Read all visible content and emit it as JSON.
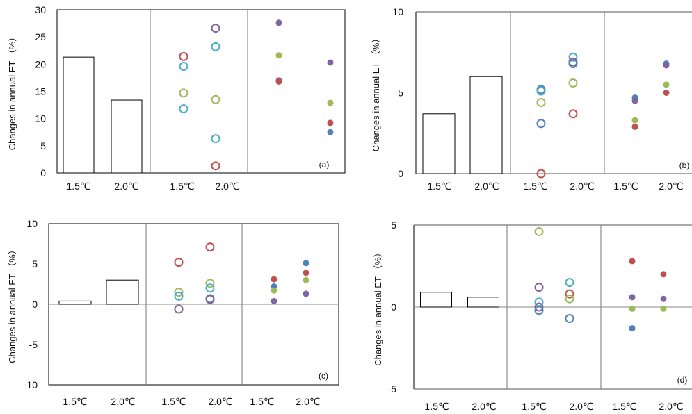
{
  "chart_data": [
    {
      "type": "scatter",
      "panel": "(a)",
      "ylabel": "Changes in annual ET （%）",
      "ylim": [
        0,
        30
      ],
      "yticks": [
        0,
        5,
        10,
        15,
        20,
        25,
        30
      ],
      "x_labels": [
        "1.5℃",
        "2.0℃",
        "1.5℃",
        "2.0℃"
      ],
      "bars": {
        "categories": [
          "1.5℃",
          "2.0℃"
        ],
        "values": [
          21.3,
          13.4
        ]
      },
      "hollow_markers": [
        {
          "x": "1.5℃",
          "color": "#c0504d",
          "value": 21.4
        },
        {
          "x": "1.5℃",
          "color": "#4bacc6",
          "value": 19.6
        },
        {
          "x": "1.5℃",
          "color": "#9bbb59",
          "value": 14.7
        },
        {
          "x": "1.5℃",
          "color": "#4bacc6",
          "value": 11.8
        },
        {
          "x": "2.0℃",
          "color": "#8064a2",
          "value": 26.6
        },
        {
          "x": "2.0℃",
          "color": "#4bacc6",
          "value": 23.2
        },
        {
          "x": "2.0℃",
          "color": "#9bbb59",
          "value": 13.5
        },
        {
          "x": "2.0℃",
          "color": "#4bacc6",
          "value": 6.3
        },
        {
          "x": "2.0℃",
          "color": "#c0504d",
          "value": 1.3
        }
      ],
      "filled_markers": [
        {
          "x": "1.5℃",
          "color": "#8064a2",
          "value": 27.6
        },
        {
          "x": "1.5℃",
          "color": "#9bbb59",
          "value": 21.6
        },
        {
          "x": "1.5℃",
          "color": "#8064a2",
          "value": 17.0
        },
        {
          "x": "1.5℃",
          "color": "#c0504d",
          "value": 16.8
        },
        {
          "x": "2.0℃",
          "color": "#8064a2",
          "value": 20.3
        },
        {
          "x": "2.0℃",
          "color": "#9bbb59",
          "value": 12.9
        },
        {
          "x": "2.0℃",
          "color": "#c0504d",
          "value": 9.2
        },
        {
          "x": "2.0℃",
          "color": "#4f81bd",
          "value": 7.5
        }
      ]
    },
    {
      "type": "scatter",
      "panel": "(b)",
      "ylabel": "Changes in annual ET （%）",
      "ylim": [
        0,
        10
      ],
      "yticks": [
        0,
        5,
        10
      ],
      "x_labels": [
        "1.5℃",
        "2.0℃",
        "1.5℃",
        "2.0℃",
        "1.5℃",
        "2.0℃"
      ],
      "bars": {
        "categories": [
          "1.5℃",
          "2.0℃"
        ],
        "values": [
          3.7,
          6.0
        ]
      },
      "hollow_markers": [
        {
          "x": "1.5℃",
          "color": "#4f81bd",
          "value": 5.2
        },
        {
          "x": "1.5℃",
          "color": "#4bacc6",
          "value": 5.1
        },
        {
          "x": "1.5℃",
          "color": "#9bbb59",
          "value": 4.4
        },
        {
          "x": "1.5℃",
          "color": "#4f81bd",
          "value": 3.1
        },
        {
          "x": "1.5℃",
          "color": "#c0504d",
          "value": 0.0
        },
        {
          "x": "2.0℃",
          "color": "#4bacc6",
          "value": 7.2
        },
        {
          "x": "2.0℃",
          "color": "#8064a2",
          "value": 6.9
        },
        {
          "x": "2.0℃",
          "color": "#4f81bd",
          "value": 6.8
        },
        {
          "x": "2.0℃",
          "color": "#9bbb59",
          "value": 5.6
        },
        {
          "x": "2.0℃",
          "color": "#c0504d",
          "value": 3.7
        }
      ],
      "filled_markers": [
        {
          "x": "1.5℃",
          "color": "#4f81bd",
          "value": 4.7
        },
        {
          "x": "1.5℃",
          "color": "#8064a2",
          "value": 4.5
        },
        {
          "x": "1.5℃",
          "color": "#9bbb59",
          "value": 3.3
        },
        {
          "x": "1.5℃",
          "color": "#c0504d",
          "value": 2.9
        },
        {
          "x": "2.0℃",
          "color": "#4f81bd",
          "value": 6.8
        },
        {
          "x": "2.0℃",
          "color": "#8064a2",
          "value": 6.7
        },
        {
          "x": "2.0℃",
          "color": "#9bbb59",
          "value": 5.5
        },
        {
          "x": "2.0℃",
          "color": "#c0504d",
          "value": 5.0
        }
      ]
    },
    {
      "type": "scatter",
      "panel": "(c)",
      "ylabel": "Changes in annual ET （%）",
      "ylim": [
        -10,
        10
      ],
      "yticks": [
        -10,
        -5,
        0,
        5,
        10
      ],
      "x_labels": [
        "1.5℃",
        "2.0℃",
        "1.5℃",
        "2.0℃",
        "1.5℃",
        "2.0℃"
      ],
      "bars": {
        "categories": [
          "1.5℃",
          "2.0℃"
        ],
        "values": [
          0.4,
          3.0
        ]
      },
      "hollow_markers": [
        {
          "x": "1.5℃",
          "color": "#c0504d",
          "value": 5.2
        },
        {
          "x": "1.5℃",
          "color": "#9bbb59",
          "value": 1.5
        },
        {
          "x": "1.5℃",
          "color": "#4bacc6",
          "value": 1.0
        },
        {
          "x": "1.5℃",
          "color": "#8064a2",
          "value": -0.6
        },
        {
          "x": "2.0℃",
          "color": "#c0504d",
          "value": 7.1
        },
        {
          "x": "2.0℃",
          "color": "#9bbb59",
          "value": 2.6
        },
        {
          "x": "2.0℃",
          "color": "#4bacc6",
          "value": 2.0
        },
        {
          "x": "2.0℃",
          "color": "#4f81bd",
          "value": 0.7
        },
        {
          "x": "2.0℃",
          "color": "#8064a2",
          "value": 0.6
        }
      ],
      "filled_markers": [
        {
          "x": "1.5℃",
          "color": "#c0504d",
          "value": 3.1
        },
        {
          "x": "1.5℃",
          "color": "#4f81bd",
          "value": 2.2
        },
        {
          "x": "1.5℃",
          "color": "#9bbb59",
          "value": 1.7
        },
        {
          "x": "1.5℃",
          "color": "#8064a2",
          "value": 0.4
        },
        {
          "x": "2.0℃",
          "color": "#4f81bd",
          "value": 5.1
        },
        {
          "x": "2.0℃",
          "color": "#c0504d",
          "value": 3.9
        },
        {
          "x": "2.0℃",
          "color": "#9bbb59",
          "value": 3.0
        },
        {
          "x": "2.0℃",
          "color": "#8064a2",
          "value": 1.3
        }
      ]
    },
    {
      "type": "scatter",
      "panel": "(d)",
      "ylabel": "Changes in annual ET （%）",
      "ylim": [
        -5,
        5
      ],
      "yticks": [
        -5,
        0,
        5
      ],
      "x_labels": [
        "1.5℃",
        "2.0℃",
        "1.5℃",
        "2.0℃",
        "1.5℃",
        "2.0℃"
      ],
      "bars": {
        "categories": [
          "1.5℃",
          "2.0℃"
        ],
        "values": [
          0.9,
          0.6
        ]
      },
      "hollow_markers": [
        {
          "x": "1.5℃",
          "color": "#9bbb59",
          "value": 4.6
        },
        {
          "x": "1.5℃",
          "color": "#8064a2",
          "value": 1.2
        },
        {
          "x": "1.5℃",
          "color": "#4bacc6",
          "value": 0.3
        },
        {
          "x": "1.5℃",
          "color": "#8064a2",
          "value": 0.0
        },
        {
          "x": "1.5℃",
          "color": "#4f81bd",
          "value": -0.2
        },
        {
          "x": "2.0℃",
          "color": "#4bacc6",
          "value": 1.5
        },
        {
          "x": "2.0℃",
          "color": "#c0504d",
          "value": 0.8
        },
        {
          "x": "2.0℃",
          "color": "#9bbb59",
          "value": 0.5
        },
        {
          "x": "2.0℃",
          "color": "#4f81bd",
          "value": -0.7
        }
      ],
      "filled_markers": [
        {
          "x": "1.5℃",
          "color": "#c0504d",
          "value": 2.8
        },
        {
          "x": "1.5℃",
          "color": "#8064a2",
          "value": 0.6
        },
        {
          "x": "1.5℃",
          "color": "#9bbb59",
          "value": -0.1
        },
        {
          "x": "1.5℃",
          "color": "#4f81bd",
          "value": -1.3
        },
        {
          "x": "2.0℃",
          "color": "#c0504d",
          "value": 2.0
        },
        {
          "x": "2.0℃",
          "color": "#8064a2",
          "value": 0.5
        },
        {
          "x": "2.0℃",
          "color": "#9bbb59",
          "value": -0.1
        }
      ]
    }
  ]
}
